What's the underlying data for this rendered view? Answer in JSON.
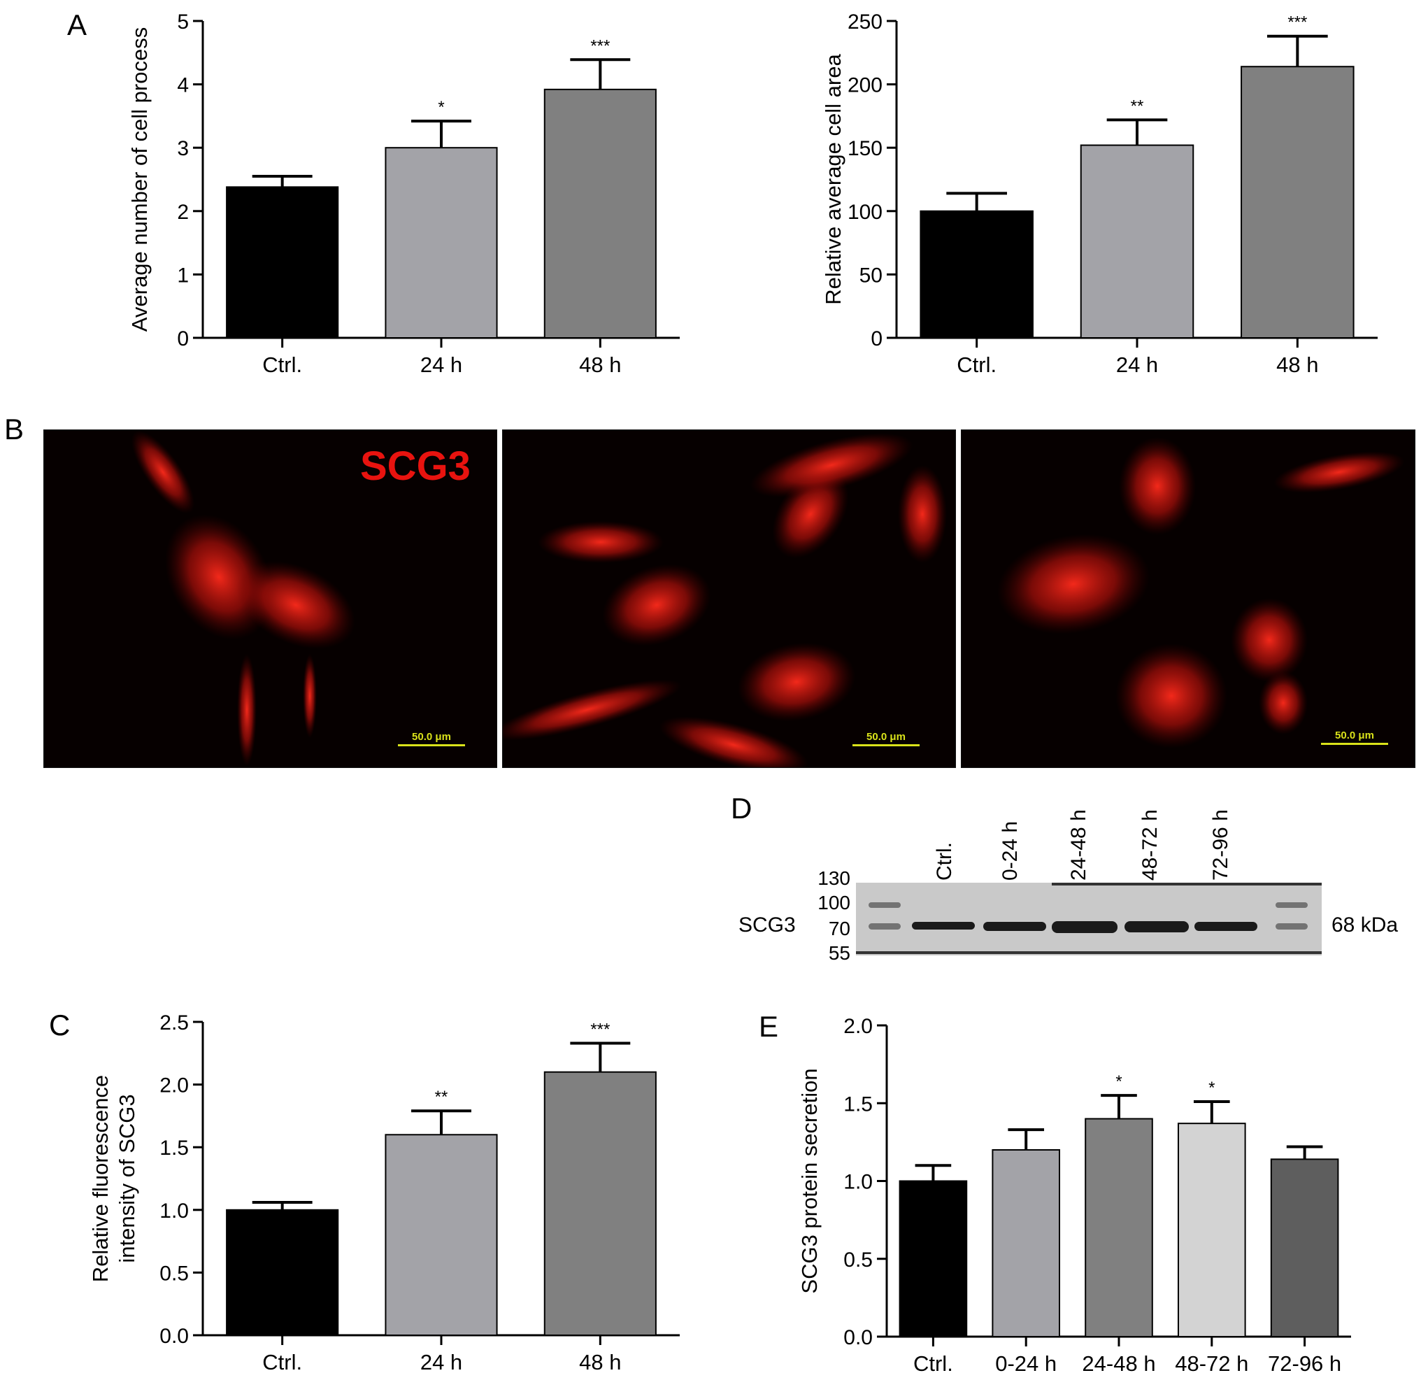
{
  "panels": {
    "A": "A",
    "B": "B",
    "C": "C",
    "D": "D",
    "E": "E"
  },
  "colors": {
    "ctrl": "#000000",
    "light": "#a3a3a8",
    "mid": "#808080",
    "lightest": "#d3d3d3",
    "dark": "#5e5e5e"
  },
  "chart_data": [
    {
      "type": "bar",
      "panel": "A",
      "categories": [
        "Ctrl.",
        "24 h",
        "48 h"
      ],
      "values": [
        2.38,
        3.0,
        3.92
      ],
      "errors": [
        0.17,
        0.42,
        0.47
      ],
      "significance": [
        "",
        "*",
        "***"
      ],
      "colors": [
        "#000000",
        "#a3a3a8",
        "#808080"
      ],
      "ylabel": "Average number of cell process",
      "ylim": [
        0,
        5
      ],
      "yticks": [
        "0",
        "1",
        "2",
        "3",
        "4",
        "5"
      ]
    },
    {
      "type": "bar",
      "panel": "A",
      "categories": [
        "Ctrl.",
        "24 h",
        "48 h"
      ],
      "values": [
        100,
        152,
        214
      ],
      "errors": [
        14,
        20,
        24
      ],
      "significance": [
        "",
        "**",
        "***"
      ],
      "colors": [
        "#000000",
        "#a3a3a8",
        "#808080"
      ],
      "ylabel": "Relative average cell area",
      "ylim": [
        0,
        250
      ],
      "yticks": [
        "0",
        "50",
        "100",
        "150",
        "200",
        "250"
      ]
    },
    {
      "type": "bar",
      "panel": "C",
      "categories": [
        "Ctrl.",
        "24 h",
        "48 h"
      ],
      "values": [
        1.0,
        1.6,
        2.1
      ],
      "errors": [
        0.06,
        0.19,
        0.23
      ],
      "significance": [
        "",
        "**",
        "***"
      ],
      "colors": [
        "#000000",
        "#a3a3a8",
        "#808080"
      ],
      "ylabel": "Relative fluorescence intensity of SCG3",
      "ylabel_lines": [
        "Relative fluorescence",
        "intensity of SCG3"
      ],
      "ylim": [
        0,
        2.5
      ],
      "yticks": [
        "0.0",
        "0.5",
        "1.0",
        "1.5",
        "2.0",
        "2.5"
      ]
    },
    {
      "type": "bar",
      "panel": "E",
      "categories": [
        "Ctrl.",
        "0-24 h",
        "24-48 h",
        "48-72 h",
        "72-96 h"
      ],
      "values": [
        1.0,
        1.2,
        1.4,
        1.37,
        1.14
      ],
      "errors": [
        0.1,
        0.13,
        0.15,
        0.14,
        0.08
      ],
      "significance": [
        "",
        "",
        "*",
        "*",
        ""
      ],
      "colors": [
        "#000000",
        "#a3a3a8",
        "#808080",
        "#d3d3d3",
        "#5e5e5e"
      ],
      "ylabel": "SCG3 protein secretion",
      "ylim": [
        0,
        2.0
      ],
      "yticks": [
        "0.0",
        "0.5",
        "1.0",
        "1.5",
        "2.0"
      ]
    }
  ],
  "microscopy": {
    "label": "SCG3",
    "scale_bar": "50.0 μm"
  },
  "blot": {
    "lanes": [
      "Ctrl.",
      "0-24 h",
      "24-48 h",
      "48-72 h",
      "72-96 h"
    ],
    "markers": [
      "130",
      "100",
      "70",
      "55"
    ],
    "protein": "SCG3",
    "size": "68 kDa",
    "intensity": [
      0.6,
      0.75,
      1.0,
      0.95,
      0.8
    ]
  }
}
